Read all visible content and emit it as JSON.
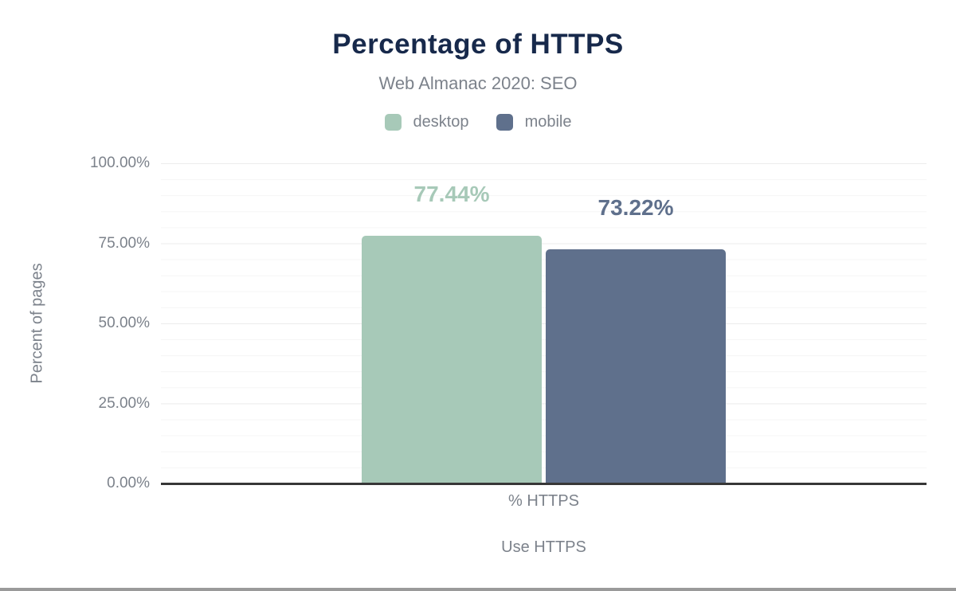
{
  "chart": {
    "title": "Percentage of HTTPS",
    "subtitle": "Web Almanac 2020: SEO"
  },
  "chart_data": {
    "type": "bar",
    "title": "Percentage of HTTPS",
    "subtitle": "Web Almanac 2020: SEO",
    "categories": [
      "% HTTPS"
    ],
    "series": [
      {
        "name": "desktop",
        "values": [
          77.44
        ],
        "labels": [
          "77.44%"
        ],
        "color": "#a7c9b8"
      },
      {
        "name": "mobile",
        "values": [
          73.22
        ],
        "labels": [
          "73.22%"
        ],
        "color": "#5f708c"
      }
    ],
    "xlabel": "Use HTTPS",
    "ylabel": "Percent of pages",
    "ylim": [
      0,
      100
    ],
    "yticks": [
      {
        "value": 100,
        "label": "100.00%"
      },
      {
        "value": 75,
        "label": "75.00%"
      },
      {
        "value": 50,
        "label": "50.00%"
      },
      {
        "value": 25,
        "label": "25.00%"
      },
      {
        "value": 0,
        "label": "0.00%"
      }
    ],
    "grid": "horizontal minor every 5, major every 25",
    "legend_position": "top"
  },
  "colors": {
    "title_text": "#17294b",
    "muted_text": "#7c828b",
    "desktop_bar": "#a7c9b8",
    "mobile_bar": "#5f708c",
    "axis_line": "#373737",
    "major_gridline": "#ececec",
    "minor_gridline": "#f5f5f5",
    "bottom_divider": "#9a9a9a"
  }
}
